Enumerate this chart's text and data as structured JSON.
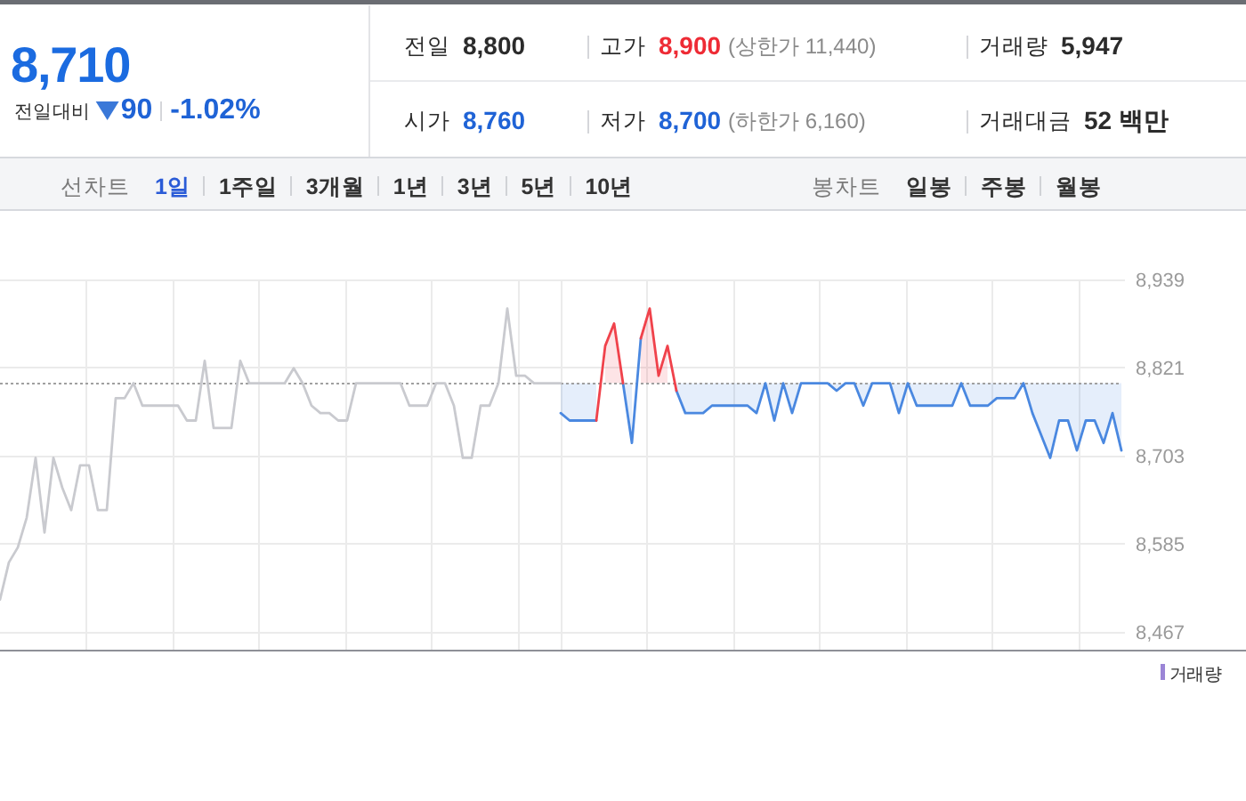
{
  "chart_data": [
    {
      "type": "other",
      "annotations": [
        "8,710",
        "전일대비",
        "90",
        "-1.02%",
        "전일",
        "8,800",
        "고가",
        "8,900",
        "(상한가 11,440)",
        "거래량",
        "5,947",
        "시가",
        "8,760",
        "저가",
        "8,700",
        "(하한가 6,160)",
        "거래대금",
        "52 백만",
        "선차트",
        "1일",
        "1주일",
        "3개월",
        "1년",
        "3년",
        "5년",
        "10년",
        "봉차트",
        "일봉",
        "주봉",
        "월봉"
      ]
    },
    {
      "type": "line",
      "tick_labels": "y",
      "grid": true,
      "ylim": [
        8443,
        8939
      ],
      "yticks": [
        {
          "value": 8467,
          "label": "8,467"
        },
        {
          "value": 8585,
          "label": "8,585"
        },
        {
          "value": 8703,
          "label": "8,703"
        },
        {
          "value": 8821,
          "label": "8,821"
        },
        {
          "value": 8939,
          "label": "8,939"
        }
      ],
      "ref_lines": [
        {
          "axis": "y",
          "value": 8800,
          "color": "#a0a0a0",
          "line_style": "dotted"
        }
      ],
      "annotations": [
        "거래량"
      ],
      "categories": [
        null,
        null,
        null,
        null,
        null,
        null,
        null,
        null,
        null,
        null,
        null,
        null,
        null,
        null,
        null,
        null,
        null,
        null,
        null,
        null,
        null,
        null,
        null,
        null,
        null,
        null,
        null,
        null,
        null,
        null,
        null,
        null,
        null,
        null,
        null,
        null,
        null,
        null,
        null,
        null,
        null,
        null,
        null,
        null,
        null,
        null,
        null,
        null,
        null,
        null,
        null,
        null,
        null,
        null,
        null,
        null,
        null,
        null,
        null,
        null,
        null,
        null,
        null,
        null,
        null,
        null,
        null,
        null,
        null,
        null,
        null,
        null,
        null,
        null,
        null,
        null,
        null,
        null,
        null,
        null,
        null,
        null,
        null,
        null,
        null,
        null,
        null,
        null,
        null,
        null,
        null,
        null,
        null,
        null,
        null,
        null,
        null,
        null,
        null,
        null,
        null,
        null,
        null,
        null,
        null,
        null,
        null,
        null,
        null,
        null,
        null,
        null,
        null,
        null,
        null,
        null,
        null,
        null,
        null,
        null,
        null,
        null,
        null,
        null,
        null,
        null,
        null
      ],
      "series": [
        {
          "color": "#c9cacf",
          "values": [
            8510,
            8560,
            8580,
            8620,
            8700,
            8600,
            8700,
            8660,
            8630,
            8690,
            8690,
            8630,
            8630,
            8780,
            8780,
            8800,
            8770,
            8770,
            8770,
            8770,
            8770,
            8750,
            8750,
            8830,
            8740,
            8740,
            8740,
            8830,
            8800,
            8800,
            8800,
            8800,
            8800,
            8820,
            8800,
            8770,
            8760,
            8760,
            8750,
            8750,
            8800,
            8800,
            8800,
            8800,
            8800,
            8800,
            8770,
            8770,
            8770,
            8800,
            8800,
            8770,
            8700,
            8700,
            8770,
            8770,
            8800,
            8900,
            8810,
            8810,
            8800,
            8800,
            8800,
            8800,
            null,
            null,
            null,
            null,
            null,
            null,
            null,
            null,
            null,
            null,
            null,
            null,
            null,
            null,
            null,
            null,
            null,
            null,
            null,
            null,
            null,
            null,
            null,
            null,
            null,
            null,
            null,
            null,
            null,
            null,
            null,
            null,
            null,
            null,
            null,
            null,
            null,
            null,
            null,
            null,
            null,
            null,
            null,
            null,
            null,
            null,
            null,
            null,
            null,
            null,
            null,
            null,
            null,
            null,
            null,
            null,
            null,
            null,
            null,
            null,
            null,
            null,
            null
          ]
        },
        {
          "color": "#4a88e0",
          "values": [
            null,
            null,
            null,
            null,
            null,
            null,
            null,
            null,
            null,
            null,
            null,
            null,
            null,
            null,
            null,
            null,
            null,
            null,
            null,
            null,
            null,
            null,
            null,
            null,
            null,
            null,
            null,
            null,
            null,
            null,
            null,
            null,
            null,
            null,
            null,
            null,
            null,
            null,
            null,
            null,
            null,
            null,
            null,
            null,
            null,
            null,
            null,
            null,
            null,
            null,
            null,
            null,
            null,
            null,
            null,
            null,
            null,
            null,
            null,
            null,
            null,
            null,
            null,
            8760,
            8750,
            8750,
            8750,
            8750,
            null,
            null,
            8800,
            8720,
            8860,
            null,
            null,
            null,
            8790,
            8760,
            8760,
            8760,
            8770,
            8770,
            8770,
            8770,
            8770,
            8760,
            8800,
            8750,
            8800,
            8760,
            8800,
            8800,
            8800,
            8800,
            8790,
            8800,
            8800,
            8770,
            8800,
            8800,
            8800,
            8760,
            8800,
            8770,
            8770,
            8770,
            8770,
            8770,
            8800,
            8770,
            8770,
            8770,
            8780,
            8780,
            8780,
            8800,
            8760,
            8730,
            8700,
            8750,
            8750,
            8710,
            8750,
            8750,
            8720,
            8760,
            8710
          ],
          "lower": [
            null,
            null,
            null,
            null,
            null,
            null,
            null,
            null,
            null,
            null,
            null,
            null,
            null,
            null,
            null,
            null,
            null,
            null,
            null,
            null,
            null,
            null,
            null,
            null,
            null,
            null,
            null,
            null,
            null,
            null,
            null,
            null,
            null,
            null,
            null,
            null,
            null,
            null,
            null,
            null,
            null,
            null,
            null,
            null,
            null,
            null,
            null,
            null,
            null,
            null,
            null,
            null,
            null,
            null,
            null,
            null,
            null,
            null,
            null,
            null,
            null,
            null,
            null,
            8760,
            8750,
            8750,
            8750,
            8750,
            null,
            null,
            8800,
            8720,
            null,
            null,
            null,
            null,
            8790,
            8760,
            8760,
            8760,
            8770,
            8770,
            8770,
            8770,
            8770,
            8760,
            8800,
            8750,
            8800,
            8760,
            8800,
            8800,
            8800,
            8800,
            8790,
            8800,
            8800,
            8770,
            8800,
            8800,
            8800,
            8760,
            8800,
            8770,
            8770,
            8770,
            8770,
            8770,
            8800,
            8770,
            8770,
            8770,
            8780,
            8780,
            8780,
            8800,
            8760,
            8730,
            8700,
            8750,
            8750,
            8710,
            8750,
            8750,
            8720,
            8760,
            8710
          ],
          "upper": [
            null,
            null,
            null,
            null,
            null,
            null,
            null,
            null,
            null,
            null,
            null,
            null,
            null,
            null,
            null,
            null,
            null,
            null,
            null,
            null,
            null,
            null,
            null,
            null,
            null,
            null,
            null,
            null,
            null,
            null,
            null,
            null,
            null,
            null,
            null,
            null,
            null,
            null,
            null,
            null,
            null,
            null,
            null,
            null,
            null,
            null,
            null,
            null,
            null,
            null,
            null,
            null,
            null,
            null,
            null,
            null,
            null,
            null,
            null,
            null,
            null,
            null,
            null,
            8800,
            8800,
            8800,
            8800,
            8800,
            null,
            null,
            8800,
            8800,
            null,
            null,
            null,
            null,
            8800,
            8800,
            8800,
            8800,
            8800,
            8800,
            8800,
            8800,
            8800,
            8800,
            8800,
            8800,
            8800,
            8800,
            8800,
            8800,
            8800,
            8800,
            8800,
            8800,
            8800,
            8800,
            8800,
            8800,
            8800,
            8800,
            8800,
            8800,
            8800,
            8800,
            8800,
            8800,
            8800,
            8800,
            8800,
            8800,
            8800,
            8800,
            8800,
            8800,
            8800,
            8800,
            8800,
            8800,
            8800,
            8800,
            8800,
            8800,
            8800,
            8800,
            8800
          ]
        },
        {
          "color": "#f0424b",
          "values": [
            null,
            null,
            null,
            null,
            null,
            null,
            null,
            null,
            null,
            null,
            null,
            null,
            null,
            null,
            null,
            null,
            null,
            null,
            null,
            null,
            null,
            null,
            null,
            null,
            null,
            null,
            null,
            null,
            null,
            null,
            null,
            null,
            null,
            null,
            null,
            null,
            null,
            null,
            null,
            null,
            null,
            null,
            null,
            null,
            null,
            null,
            null,
            null,
            null,
            null,
            null,
            null,
            null,
            null,
            null,
            null,
            null,
            null,
            null,
            null,
            null,
            null,
            null,
            null,
            null,
            null,
            null,
            8750,
            8850,
            8880,
            8800,
            null,
            8860,
            8900,
            8810,
            8850,
            8790,
            null,
            null,
            null,
            null,
            null,
            null,
            null,
            null,
            null,
            null,
            null,
            null,
            null,
            null,
            null,
            null,
            null,
            null,
            null,
            null,
            null,
            null,
            null,
            null,
            null,
            null,
            null,
            null,
            null,
            null,
            null,
            null,
            null,
            null,
            null,
            null,
            null,
            null,
            null,
            null,
            null,
            null,
            null,
            null,
            null,
            null,
            null,
            null,
            null,
            null
          ],
          "lower": [
            null,
            null,
            null,
            null,
            null,
            null,
            null,
            null,
            null,
            null,
            null,
            null,
            null,
            null,
            null,
            null,
            null,
            null,
            null,
            null,
            null,
            null,
            null,
            null,
            null,
            null,
            null,
            null,
            null,
            null,
            null,
            null,
            null,
            null,
            null,
            null,
            null,
            null,
            null,
            null,
            null,
            null,
            null,
            null,
            null,
            null,
            null,
            null,
            null,
            null,
            null,
            null,
            null,
            null,
            null,
            null,
            null,
            null,
            null,
            null,
            null,
            null,
            null,
            null,
            null,
            null,
            null,
            null,
            8800,
            8800,
            8800,
            null,
            8800,
            8800,
            8800,
            8800,
            null,
            null,
            null,
            null,
            null,
            null,
            null,
            null,
            null,
            null,
            null,
            null,
            null,
            null,
            null,
            null,
            null,
            null,
            null,
            null,
            null,
            null,
            null,
            null,
            null,
            null,
            null,
            null,
            null,
            null,
            null,
            null,
            null,
            null,
            null,
            null,
            null,
            null,
            null,
            null,
            null,
            null,
            null,
            null,
            null,
            null,
            null,
            null,
            null,
            null,
            null
          ],
          "upper": [
            null,
            null,
            null,
            null,
            null,
            null,
            null,
            null,
            null,
            null,
            null,
            null,
            null,
            null,
            null,
            null,
            null,
            null,
            null,
            null,
            null,
            null,
            null,
            null,
            null,
            null,
            null,
            null,
            null,
            null,
            null,
            null,
            null,
            null,
            null,
            null,
            null,
            null,
            null,
            null,
            null,
            null,
            null,
            null,
            null,
            null,
            null,
            null,
            null,
            null,
            null,
            null,
            null,
            null,
            null,
            null,
            null,
            null,
            null,
            null,
            null,
            null,
            null,
            null,
            null,
            null,
            null,
            null,
            8850,
            8880,
            8800,
            null,
            8860,
            8900,
            8810,
            8850,
            null,
            null,
            null,
            null,
            null,
            null,
            null,
            null,
            null,
            null,
            null,
            null,
            null,
            null,
            null,
            null,
            null,
            null,
            null,
            null,
            null,
            null,
            null,
            null,
            null,
            null,
            null,
            null,
            null,
            null,
            null,
            null,
            null,
            null,
            null,
            null,
            null,
            null,
            null,
            null,
            null,
            null,
            null,
            null,
            null,
            null,
            null,
            null,
            null,
            null,
            null
          ]
        }
      ]
    }
  ]
}
